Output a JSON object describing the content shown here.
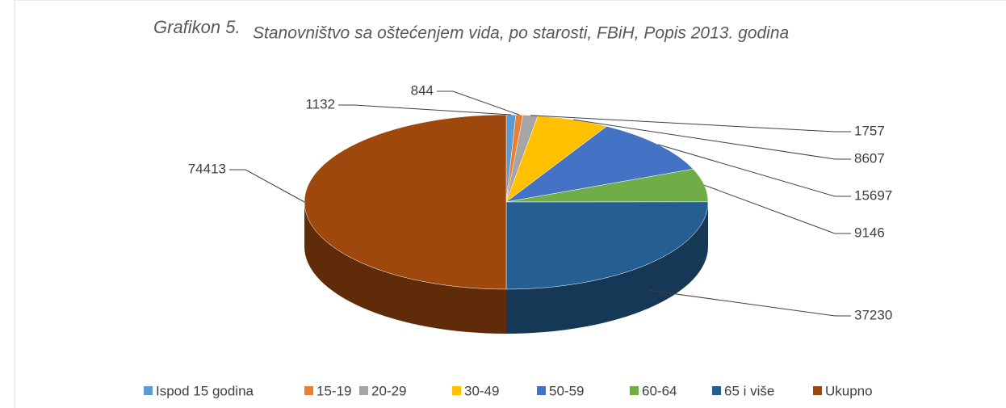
{
  "chart_data": {
    "type": "pie3d",
    "figure_label": "Grafikon 5.",
    "title": "Stanovništvo sa oštećenjem vida, po starosti, FBiH, Popis 2013. godina",
    "categories": [
      "Ispod 15 godina",
      "15-19",
      "20-29",
      "30-49",
      "50-59",
      "60-64",
      "65 i više",
      "Ukupno"
    ],
    "values": [
      1132,
      844,
      1757,
      8607,
      15697,
      9146,
      37230,
      74413
    ],
    "colors": [
      "#5b9bd5",
      "#ed7d31",
      "#a5a5a5",
      "#ffc000",
      "#4472c4",
      "#70ad47",
      "#255e91",
      "#9e480e"
    ],
    "legend": "bottom"
  }
}
